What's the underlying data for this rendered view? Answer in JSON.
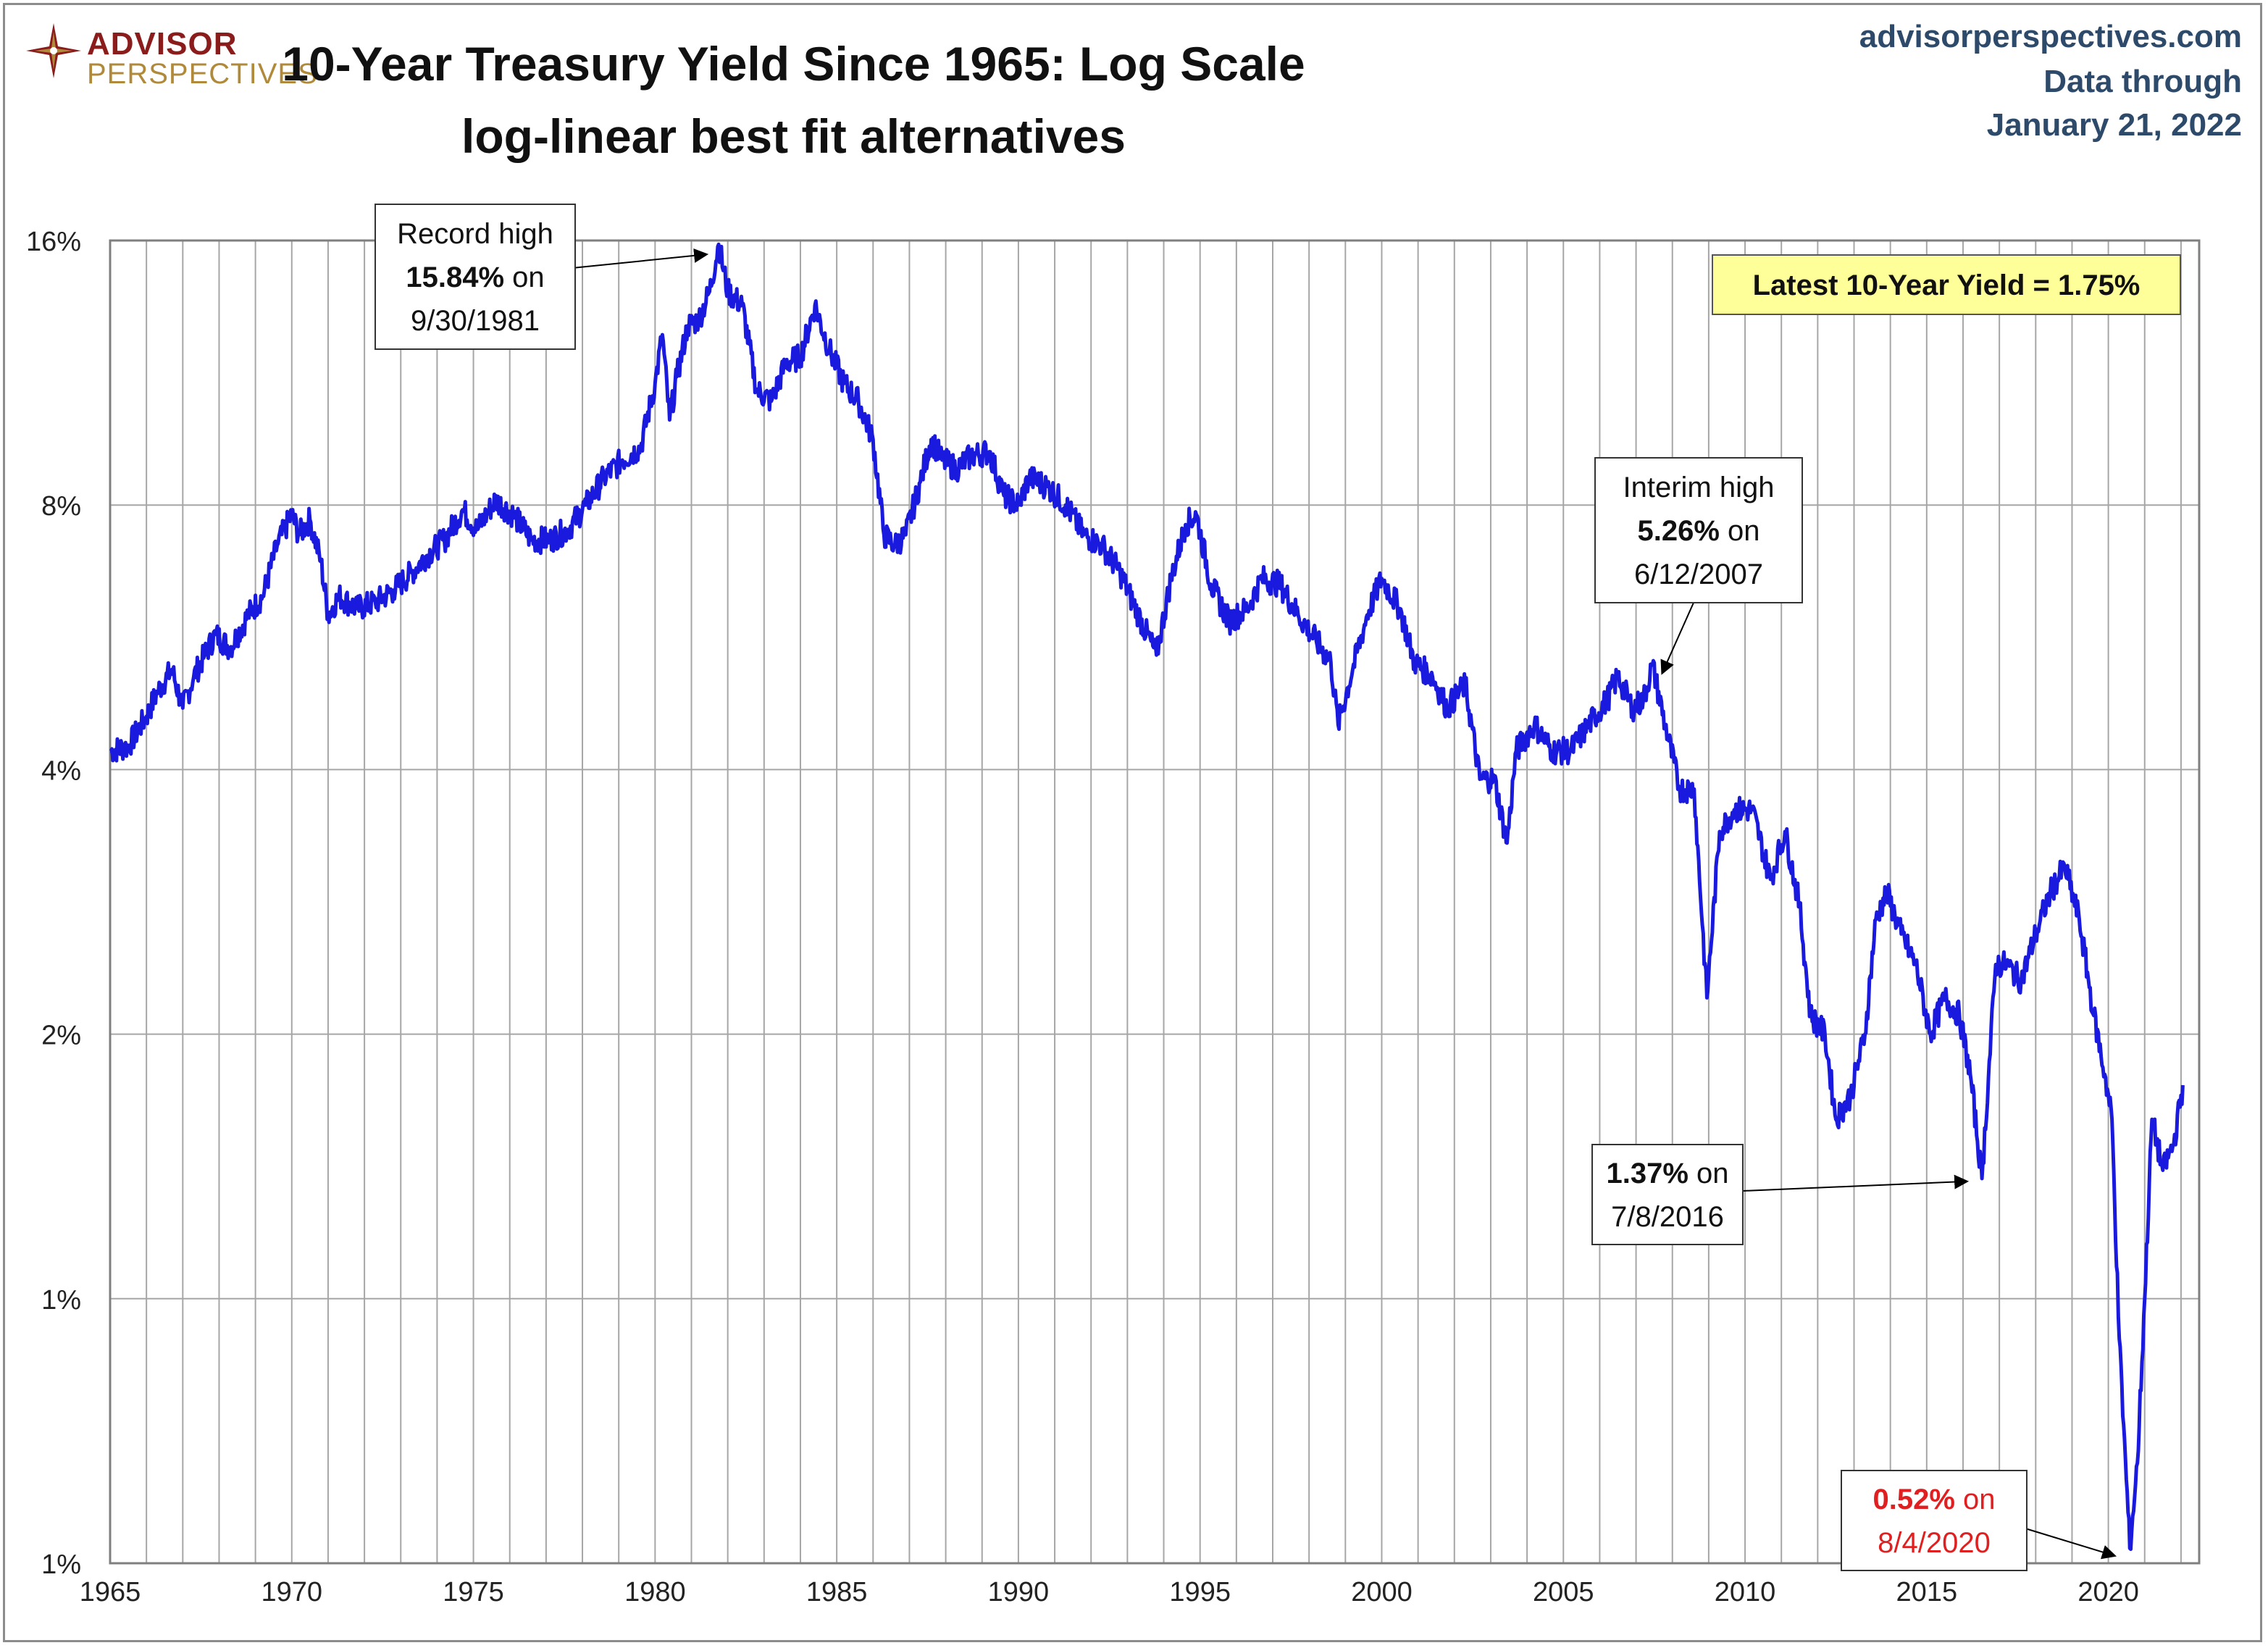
{
  "brand": {
    "line1": "ADVISOR",
    "line2": "PERSPECTIVES"
  },
  "header": {
    "title_line1": "10-Year Treasury Yield Since 1965: Log Scale",
    "title_line2": "log-linear best fit alternatives",
    "source": "advisorperspectives.com",
    "data_through_label": "Data through",
    "data_through_date": "January 21, 2022"
  },
  "colors": {
    "series": "#1a1adf",
    "grid": "#a6a6a6",
    "callout_fill": "#ffff99",
    "highlight_red": "#e02020"
  },
  "chart_data": {
    "type": "line",
    "title": "10-Year Treasury Yield Since 1965: Log Scale",
    "subtitle": "log-linear best fit alternatives",
    "y_scale": "log2",
    "ylim": [
      0.5,
      16
    ],
    "xlim": [
      1965.0,
      2022.5
    ],
    "y_ticks": [
      0.5,
      1,
      2,
      4,
      8,
      16
    ],
    "y_tick_labels": [
      "1%",
      "1%",
      "2%",
      "4%",
      "8%",
      "16%"
    ],
    "x_ticks": [
      1965,
      1970,
      1975,
      1980,
      1985,
      1990,
      1995,
      2000,
      2005,
      2010,
      2015,
      2020
    ],
    "x_tick_labels": [
      "1965",
      "1970",
      "1975",
      "1980",
      "1985",
      "1990",
      "1995",
      "2000",
      "2005",
      "2010",
      "2015",
      "2020"
    ],
    "grid": {
      "vertical": "yearly",
      "horizontal": true
    },
    "series": [
      {
        "x": [
          1965.0,
          1965.5,
          1966.0,
          1966.3,
          1966.7,
          1967.0,
          1967.3,
          1967.6,
          1967.9,
          1968.3,
          1968.8,
          1969.2,
          1969.6,
          1970.0,
          1970.2,
          1970.5,
          1970.8,
          1971.0,
          1971.3,
          1971.8,
          1972.3,
          1972.8,
          1973.3,
          1973.7,
          1974.2,
          1974.7,
          1975.1,
          1975.6,
          1976.1,
          1976.6,
          1977.1,
          1977.6,
          1978.1,
          1978.6,
          1979.1,
          1979.6,
          1980.0,
          1980.2,
          1980.4,
          1980.6,
          1980.9,
          1981.2,
          1981.5,
          1981.75,
          1982.0,
          1982.4,
          1982.8,
          1983.2,
          1983.6,
          1984.0,
          1984.4,
          1984.8,
          1985.2,
          1985.6,
          1986.0,
          1986.3,
          1986.6,
          1986.9,
          1987.3,
          1987.6,
          1987.9,
          1988.3,
          1988.7,
          1989.2,
          1989.6,
          1990.0,
          1990.3,
          1990.8,
          1991.3,
          1991.8,
          1992.3,
          1992.8,
          1993.3,
          1993.8,
          1994.2,
          1994.6,
          1994.9,
          1995.3,
          1995.8,
          1996.3,
          1996.7,
          1997.2,
          1997.7,
          1998.2,
          1998.6,
          1998.8,
          1999.2,
          1999.6,
          2000.0,
          2000.5,
          2000.9,
          2001.4,
          2001.8,
          2002.3,
          2002.7,
          2003.1,
          2003.45,
          2003.7,
          2004.2,
          2004.7,
          2005.2,
          2005.7,
          2006.2,
          2006.5,
          2006.9,
          2007.2,
          2007.45,
          2007.8,
          2008.2,
          2008.6,
          2008.95,
          2009.3,
          2009.7,
          2010.2,
          2010.7,
          2011.1,
          2011.5,
          2011.8,
          2012.2,
          2012.5,
          2012.9,
          2013.3,
          2013.6,
          2013.9,
          2014.3,
          2014.7,
          2015.1,
          2015.5,
          2015.9,
          2016.2,
          2016.52,
          2016.9,
          2017.2,
          2017.6,
          2018.0,
          2018.4,
          2018.8,
          2019.2,
          2019.6,
          2019.9,
          2020.1,
          2020.3,
          2020.59,
          2020.8,
          2021.0,
          2021.2,
          2021.5,
          2021.8,
          2022.05
        ],
        "y": [
          4.2,
          4.25,
          4.6,
          4.9,
          5.2,
          4.7,
          5.1,
          5.4,
          5.7,
          5.5,
          6.0,
          6.3,
          7.2,
          7.8,
          7.4,
          7.7,
          6.9,
          6.0,
          6.3,
          6.1,
          6.2,
          6.4,
          6.7,
          7.0,
          7.3,
          7.9,
          7.5,
          8.1,
          7.8,
          7.3,
          7.3,
          7.5,
          8.0,
          8.6,
          9.0,
          9.3,
          11.0,
          12.5,
          10.0,
          11.2,
          12.8,
          13.0,
          14.0,
          15.84,
          14.0,
          13.5,
          10.8,
          10.5,
          11.6,
          11.8,
          13.5,
          12.0,
          11.0,
          10.5,
          9.5,
          7.4,
          7.2,
          7.4,
          8.5,
          9.5,
          9.0,
          8.8,
          9.1,
          9.2,
          8.2,
          8.0,
          8.6,
          8.4,
          8.0,
          7.4,
          7.2,
          6.7,
          6.0,
          5.4,
          6.6,
          7.6,
          7.8,
          6.5,
          5.9,
          6.1,
          6.6,
          6.5,
          6.0,
          5.6,
          5.3,
          4.5,
          5.2,
          6.0,
          6.6,
          6.1,
          5.3,
          5.1,
          4.7,
          5.0,
          3.9,
          3.9,
          3.3,
          4.2,
          4.5,
          4.2,
          4.2,
          4.5,
          4.8,
          5.1,
          4.7,
          4.8,
          5.26,
          4.5,
          3.8,
          3.8,
          2.2,
          3.4,
          3.6,
          3.6,
          3.0,
          3.4,
          2.8,
          2.1,
          2.0,
          1.6,
          1.7,
          2.0,
          2.7,
          2.9,
          2.6,
          2.4,
          2.0,
          2.2,
          2.1,
          1.8,
          1.37,
          2.4,
          2.4,
          2.3,
          2.6,
          2.9,
          3.1,
          2.7,
          2.1,
          1.8,
          1.6,
          0.9,
          0.52,
          0.65,
          1.0,
          1.6,
          1.4,
          1.5,
          1.75
        ]
      }
    ],
    "annotations": [
      {
        "lines": [
          "Record high",
          "15.84% on",
          "9/30/1981"
        ],
        "bold": "15.84%",
        "x": 1981.75,
        "y": 15.84
      },
      {
        "lines": [
          "Interim high",
          "5.26% on",
          "6/12/2007"
        ],
        "bold": "5.26%",
        "x": 2007.45,
        "y": 5.26
      },
      {
        "lines": [
          "1.37% on",
          "7/8/2016"
        ],
        "bold": "1.37%",
        "x": 2016.52,
        "y": 1.37
      },
      {
        "lines": [
          "0.52% on",
          "8/4/2020"
        ],
        "bold": "0.52%",
        "x": 2020.59,
        "y": 0.52
      }
    ],
    "latest_label": "Latest 10-Year Yield = 1.75%"
  }
}
